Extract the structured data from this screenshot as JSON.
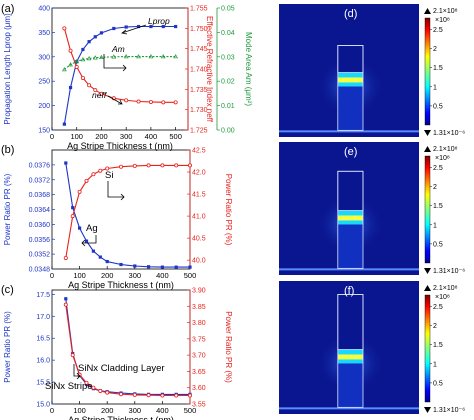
{
  "colors": {
    "blue": "#1f35c8",
    "red": "#e8231e",
    "green": "#1f9a3c",
    "black": "#000000",
    "field_dark": "#0a1690",
    "field_low": "#1230c0"
  },
  "panels": {
    "a": {
      "letter": "(a)"
    },
    "b": {
      "letter": "(b)"
    },
    "c": {
      "letter": "(c)"
    },
    "d": {
      "letter": "(d)"
    },
    "e": {
      "letter": "(e)"
    },
    "f": {
      "letter": "(f)"
    }
  },
  "chart_data": [
    {
      "id": "a",
      "type": "line",
      "xlabel": "Ag Stripe Thickness t (nm)",
      "xlim": [
        0,
        550
      ],
      "xticks": [
        0,
        100,
        200,
        300,
        400,
        500
      ],
      "y_left": {
        "label": "Propagation Length Lprop (μm)",
        "ylim": [
          150,
          400
        ],
        "ticks": [
          150,
          200,
          250,
          300,
          350,
          400
        ]
      },
      "y_right": {
        "label": "Effective Refractive Index neff",
        "ylim": [
          1.725,
          1.755
        ],
        "ticks": [
          1.725,
          1.73,
          1.735,
          1.74,
          1.745,
          1.75,
          1.755
        ]
      },
      "y_right2": {
        "label": "Mode Area Am (μm²)",
        "ylim": [
          0,
          0.05
        ],
        "ticks": [
          0.0,
          0.01,
          0.02,
          0.03,
          0.04,
          0.05
        ]
      },
      "annotations": [
        "Lprop",
        "Am",
        "neff"
      ],
      "series": [
        {
          "name": "Lprop",
          "axis": "left",
          "color": "blue",
          "marker": "square",
          "x": [
            50,
            75,
            100,
            125,
            150,
            175,
            200,
            250,
            300,
            350,
            400,
            450,
            500
          ],
          "values": [
            162,
            237,
            290,
            315,
            331,
            341,
            349,
            358,
            361,
            362,
            362,
            362,
            362
          ]
        },
        {
          "name": "neff",
          "axis": "right",
          "color": "red",
          "marker": "circle",
          "x": [
            50,
            75,
            100,
            125,
            150,
            175,
            200,
            250,
            300,
            350,
            400,
            450,
            500
          ],
          "values": [
            1.75,
            1.7445,
            1.7405,
            1.7378,
            1.736,
            1.7348,
            1.7339,
            1.7328,
            1.7323,
            1.732,
            1.7319,
            1.7318,
            1.7318
          ]
        },
        {
          "name": "Am",
          "axis": "right2",
          "color": "green",
          "marker": "triangle",
          "dashed": true,
          "x": [
            50,
            75,
            100,
            125,
            150,
            175,
            200,
            250,
            300,
            350,
            400,
            450,
            500
          ],
          "values": [
            0.0248,
            0.0268,
            0.0281,
            0.0289,
            0.0293,
            0.0296,
            0.0298,
            0.03,
            0.0301,
            0.0301,
            0.0301,
            0.0301,
            0.0301
          ]
        }
      ]
    },
    {
      "id": "b",
      "type": "line",
      "xlabel": "Ag Stripe Thickness t (nm)",
      "xlim": [
        0,
        500
      ],
      "xticks": [
        0,
        100,
        200,
        300,
        400,
        500
      ],
      "y_left": {
        "label": "Power Ratio PR (%)",
        "ylim": [
          0.0348,
          0.038
        ],
        "ticks": [
          0.0348,
          0.0352,
          0.0356,
          0.036,
          0.0364,
          0.0368,
          0.0372,
          0.0376
        ]
      },
      "y_right": {
        "label": "Power Ratio PR (%)",
        "ylim": [
          39.8,
          42.5
        ],
        "ticks": [
          40.0,
          40.5,
          41.0,
          41.5,
          42.0,
          42.5
        ]
      },
      "annotations": [
        "Si",
        "Ag"
      ],
      "series": [
        {
          "name": "Ag",
          "axis": "left",
          "color": "blue",
          "marker": "square",
          "x": [
            50,
            75,
            100,
            125,
            150,
            175,
            200,
            250,
            300,
            350,
            400,
            450,
            500
          ],
          "values": [
            0.03765,
            0.03645,
            0.0359,
            0.03555,
            0.03528,
            0.03512,
            0.035,
            0.03492,
            0.03488,
            0.03486,
            0.03485,
            0.03485,
            0.03485
          ]
        },
        {
          "name": "Si",
          "axis": "right",
          "color": "red",
          "marker": "circle",
          "x": [
            50,
            75,
            100,
            125,
            150,
            175,
            200,
            250,
            300,
            350,
            400,
            450,
            500
          ],
          "values": [
            40.05,
            41.0,
            41.55,
            41.8,
            41.95,
            42.03,
            42.08,
            42.12,
            42.14,
            42.15,
            42.15,
            42.15,
            42.15
          ]
        }
      ]
    },
    {
      "id": "c",
      "type": "line",
      "xlabel": "Ag Stripe Thickness t (nm)",
      "xlim": [
        0,
        500
      ],
      "xticks": [
        0,
        100,
        200,
        300,
        400,
        500
      ],
      "y_left": {
        "label": "Power Ratio PR (%)",
        "ylim": [
          15.0,
          17.6
        ],
        "ticks": [
          15.0,
          15.5,
          16.0,
          16.5,
          17.0,
          17.5
        ]
      },
      "y_right": {
        "label": "Power Ratio PR (%)",
        "ylim": [
          3.55,
          3.9
        ],
        "ticks": [
          3.55,
          3.6,
          3.65,
          3.7,
          3.75,
          3.8,
          3.85,
          3.9
        ]
      },
      "annotations": [
        "SiNx Cladding Layer",
        "SiNx Stripe"
      ],
      "series": [
        {
          "name": "SiNx Stripe",
          "axis": "left",
          "color": "blue",
          "marker": "square",
          "x": [
            50,
            75,
            100,
            125,
            150,
            175,
            200,
            250,
            300,
            350,
            400,
            450,
            500
          ],
          "values": [
            17.4,
            16.15,
            15.65,
            15.45,
            15.35,
            15.3,
            15.28,
            15.25,
            15.23,
            15.22,
            15.22,
            15.22,
            15.22
          ]
        },
        {
          "name": "SiNx Cladding Layer",
          "axis": "right",
          "color": "red",
          "marker": "circle",
          "x": [
            50,
            75,
            100,
            125,
            150,
            175,
            200,
            250,
            300,
            350,
            400,
            450,
            500
          ],
          "values": [
            3.855,
            3.7,
            3.64,
            3.615,
            3.6,
            3.59,
            3.585,
            3.58,
            3.578,
            3.577,
            3.576,
            3.576,
            3.576
          ]
        }
      ]
    },
    {
      "id": "d",
      "type": "heatmap",
      "colorbar": {
        "max_label": "2.1×10⁸",
        "exp_label": "×10⁸",
        "min_label": "1.31×10⁻⁶",
        "ticks": [
          "0.5",
          "1",
          "1.5",
          "2",
          "2.5"
        ],
        "range": [
          0,
          2.8
        ]
      },
      "stripe_top": 0.2
    },
    {
      "id": "e",
      "type": "heatmap",
      "colorbar": {
        "max_label": "2.1×10⁸",
        "exp_label": "×10⁸",
        "min_label": "1.31×10⁻⁶",
        "ticks": [
          "0.5",
          "1",
          "1.5",
          "2",
          "2.5"
        ],
        "range": [
          0,
          2.8
        ]
      },
      "stripe_top": 0.47
    },
    {
      "id": "f",
      "type": "heatmap",
      "colorbar": {
        "max_label": "2.1×10⁸",
        "exp_label": "×10⁸",
        "min_label": "1.31×10⁻⁶",
        "ticks": [
          "0.5",
          "1",
          "1.5",
          "2",
          "2.5"
        ],
        "range": [
          0,
          2.8
        ]
      },
      "stripe_top": 0.82
    }
  ]
}
